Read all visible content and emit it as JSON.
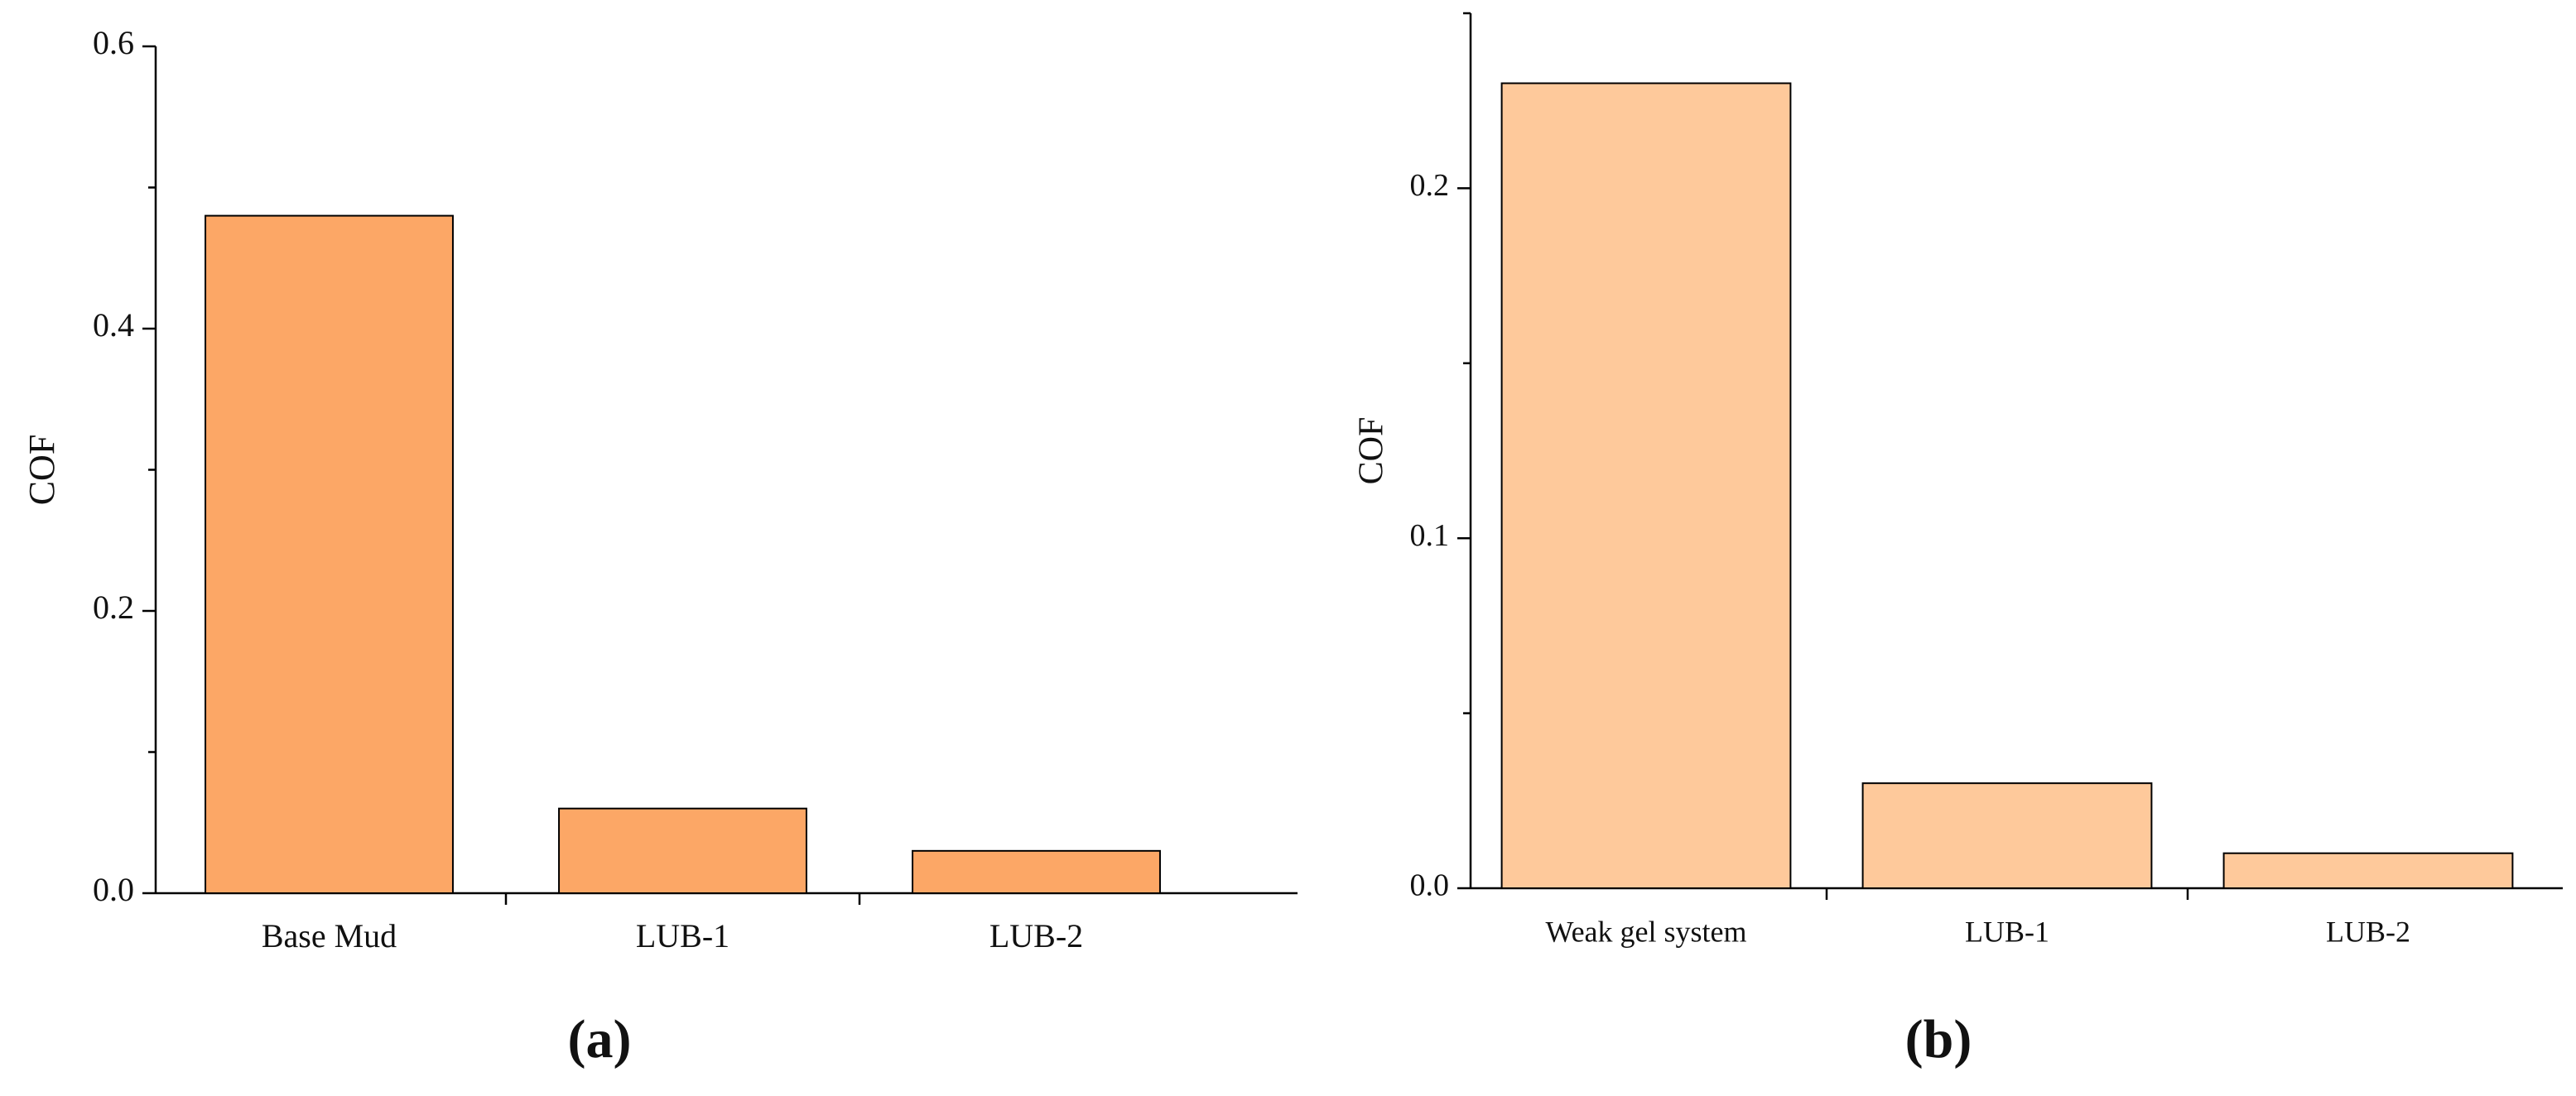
{
  "chart_data": [
    {
      "type": "bar",
      "panel_label": "(a)",
      "y_label": "COF",
      "categories": [
        "Base Mud",
        "LUB-1",
        "LUB-2"
      ],
      "values": [
        0.48,
        0.06,
        0.03
      ],
      "color": "#fca766",
      "ylim": [
        0,
        0.6
      ],
      "yticks": [
        {
          "value": 0,
          "label": "0.0"
        },
        0.2,
        0.4,
        0.6
      ],
      "minor_yticks": [
        0.1,
        0.3,
        0.5
      ]
    },
    {
      "type": "bar",
      "panel_label": "(b)",
      "y_label": "COF",
      "categories": [
        "Weak gel system",
        "LUB-1",
        "LUB-2"
      ],
      "values": [
        0.23,
        0.03,
        0.01
      ],
      "color": "#fec99b",
      "ylim": [
        0,
        0.25
      ],
      "yticks": [
        {
          "value": 0,
          "label": "0.0"
        },
        0.1,
        0.2
      ],
      "minor_yticks": [
        0.05,
        0.15,
        0.25
      ]
    }
  ]
}
